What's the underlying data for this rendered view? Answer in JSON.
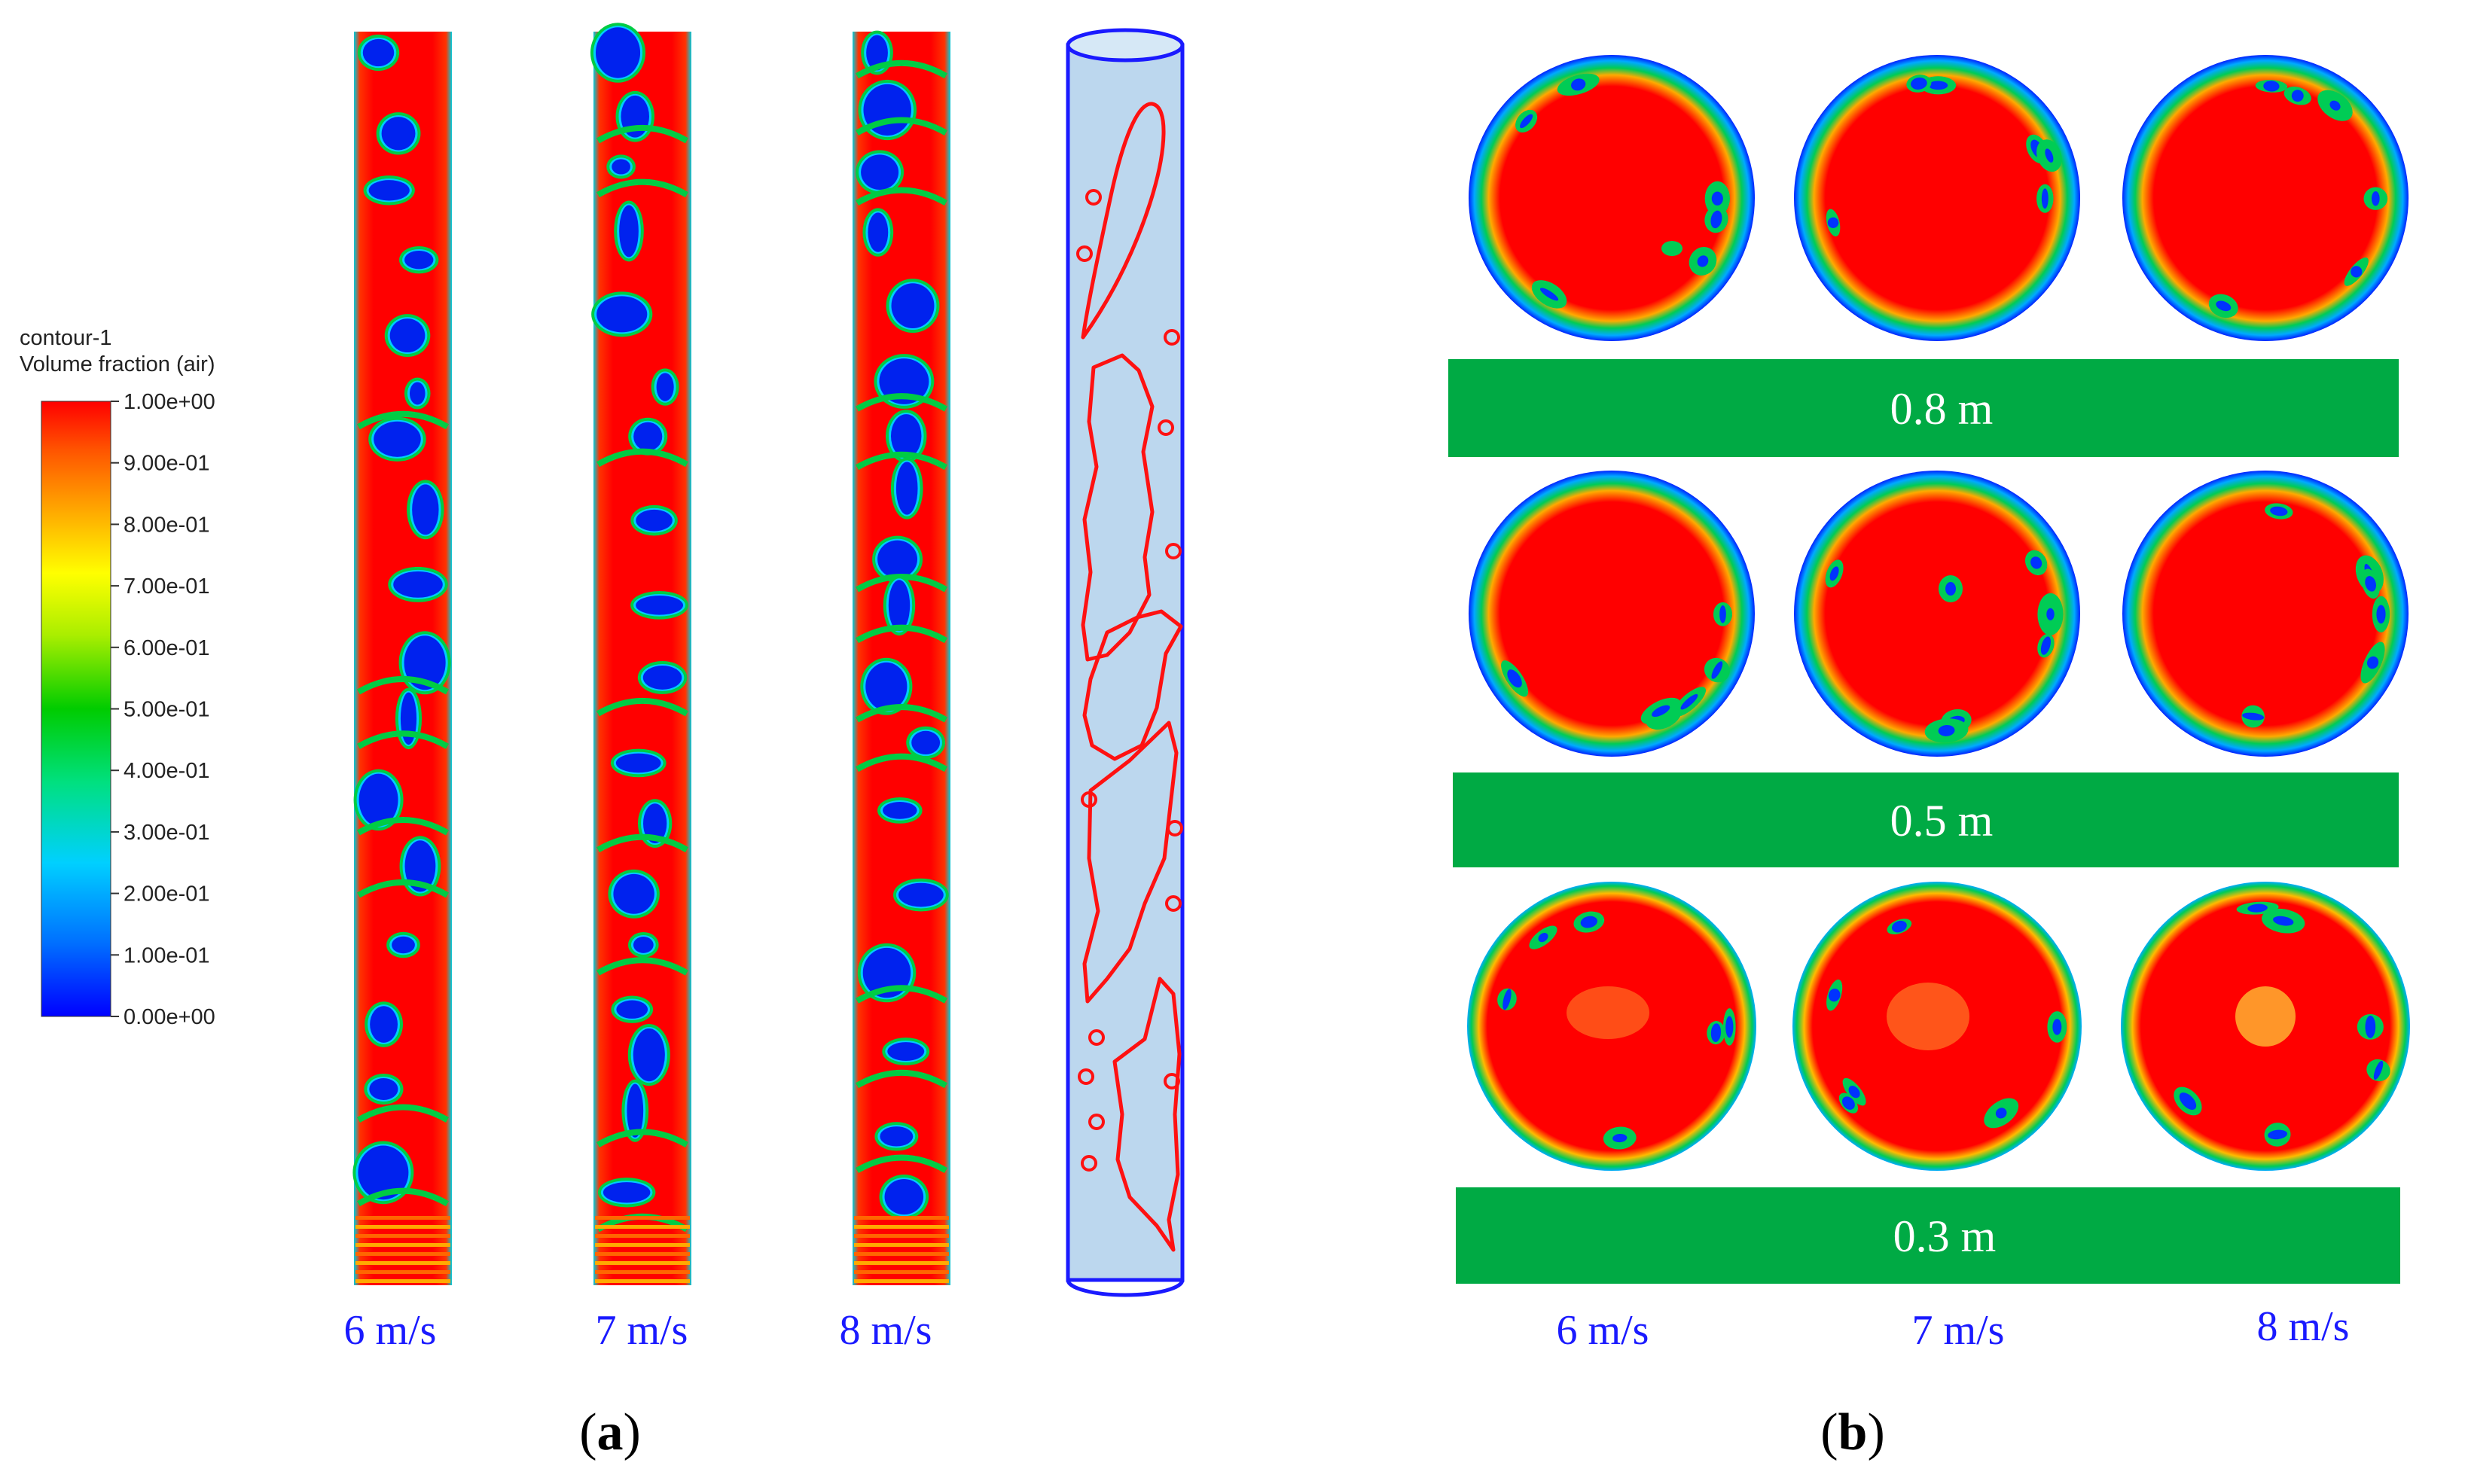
{
  "colorbar": {
    "title_line1": "contour-1",
    "title_line2": "Volume fraction (air)",
    "ticks": [
      "1.00e+00",
      "9.00e-01",
      "8.00e-01",
      "7.00e-01",
      "6.00e-01",
      "5.00e-01",
      "4.00e-01",
      "3.00e-01",
      "2.00e-01",
      "1.00e-01",
      "0.00e+00"
    ],
    "colors": [
      "#0000ff",
      "#00aaff",
      "#00e5e5",
      "#00dd55",
      "#00cc00",
      "#66dd00",
      "#dddd00",
      "#ffbb00",
      "#ff8800",
      "#ff3300",
      "#ff0000"
    ]
  },
  "panel_a": {
    "label_open": "(",
    "label_letter": "a",
    "label_close": ")",
    "pipes": [
      {
        "velocity": "6 m/s"
      },
      {
        "velocity": "7 m/s"
      },
      {
        "velocity": "8 m/s"
      }
    ]
  },
  "panel_b": {
    "label_open": "(",
    "label_letter": "b",
    "label_close": ")",
    "sections": [
      {
        "height": "0.8 m"
      },
      {
        "height": "0.5 m"
      },
      {
        "height": "0.3 m"
      }
    ],
    "velocities": [
      "6 m/s",
      "7 m/s",
      "8 m/s"
    ]
  },
  "colors": {
    "air": "#ff0000",
    "water": "#0033ff",
    "interface": "#00cc33",
    "band": "#00aa44",
    "velocity_text": "#1a1aff",
    "schematic_fill": "#bcd7ee"
  }
}
